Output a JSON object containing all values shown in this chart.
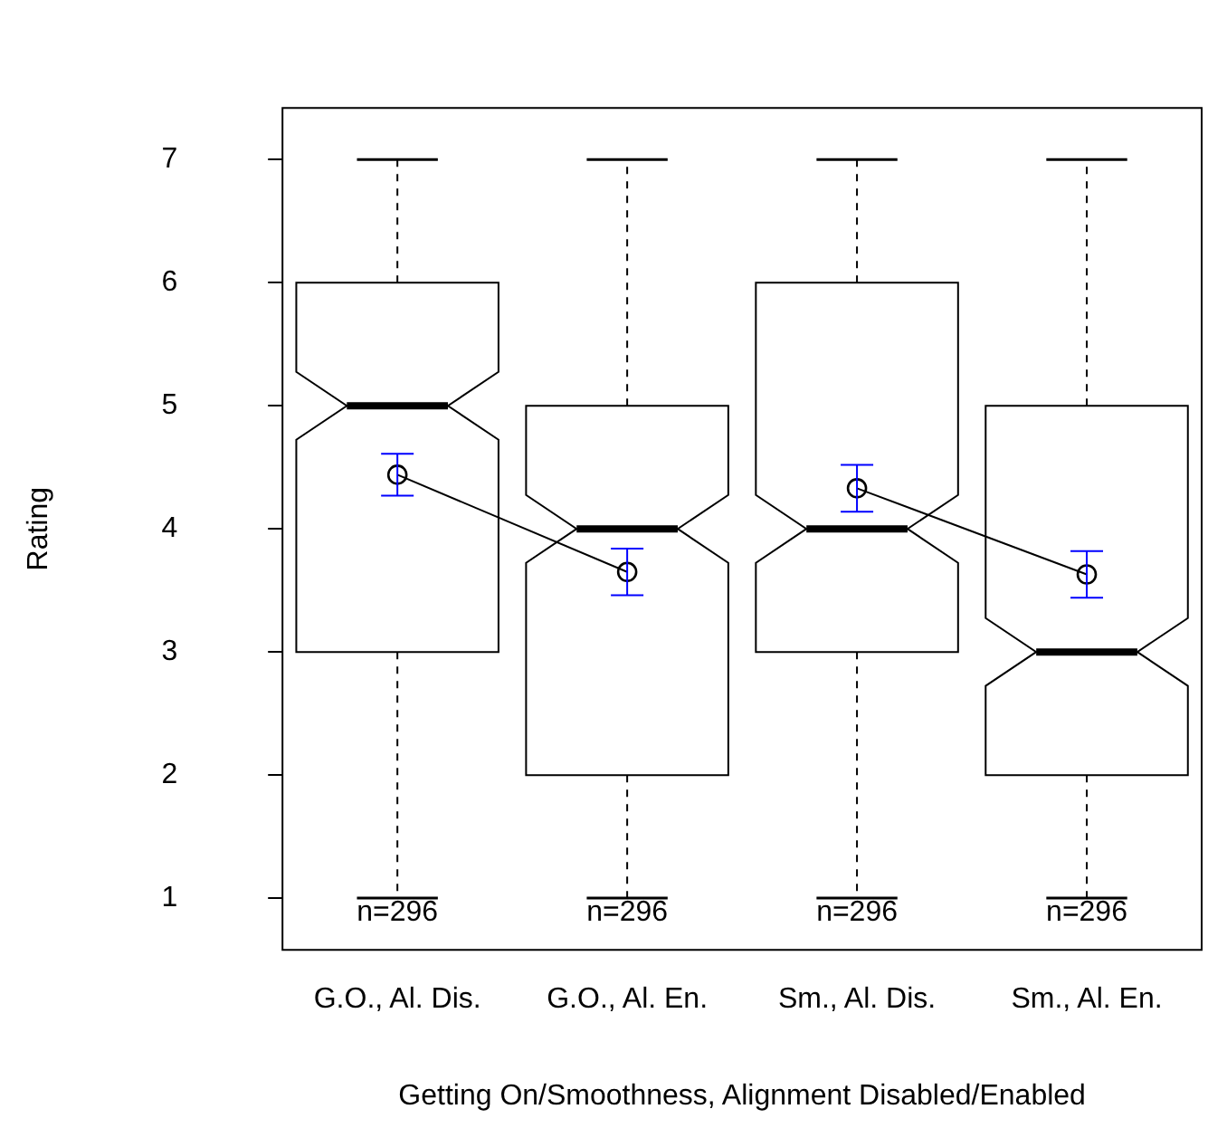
{
  "chart_data": {
    "type": "box",
    "xlabel": "Getting On/Smoothness, Alignment Disabled/Enabled",
    "ylabel": "Rating",
    "categories": [
      "G.O., Al. Dis.",
      "G.O., Al. En.",
      "Sm., Al. Dis.",
      "Sm., Al. En."
    ],
    "boxes": [
      {
        "low": 1,
        "q1": 3,
        "median": 5,
        "q3": 6,
        "high": 7
      },
      {
        "low": 1,
        "q1": 2,
        "median": 4,
        "q3": 5,
        "high": 7
      },
      {
        "low": 1,
        "q1": 3,
        "median": 4,
        "q3": 6,
        "high": 7
      },
      {
        "low": 1,
        "q1": 2,
        "median": 3,
        "q3": 5,
        "high": 7
      }
    ],
    "series": [
      {
        "type": "line",
        "color": "#000000",
        "x": [
          "G.O., Al. Dis.",
          "G.O., Al. En."
        ],
        "values": [
          4.44,
          3.65
        ],
        "errors": [
          0.17,
          0.19
        ]
      },
      {
        "type": "line",
        "color": "#000000",
        "x": [
          "Sm., Al. Dis.",
          "Sm., Al. En."
        ],
        "values": [
          4.33,
          3.63
        ],
        "errors": [
          0.19,
          0.19
        ]
      }
    ],
    "marker": "circle",
    "ylim": [
      0.58,
      7.42
    ],
    "yticks": [
      1,
      2,
      3,
      4,
      5,
      6,
      7
    ],
    "grid": false,
    "legend": false,
    "annotations": [
      {
        "text": "n=296",
        "x": "G.O., Al. Dis.",
        "y": 1
      },
      {
        "text": "n=296",
        "x": "G.O., Al. En.",
        "y": 1
      },
      {
        "text": "n=296",
        "x": "Sm., Al. Dis.",
        "y": 1
      },
      {
        "text": "n=296",
        "x": "Sm., Al. En.",
        "y": 1
      }
    ]
  }
}
